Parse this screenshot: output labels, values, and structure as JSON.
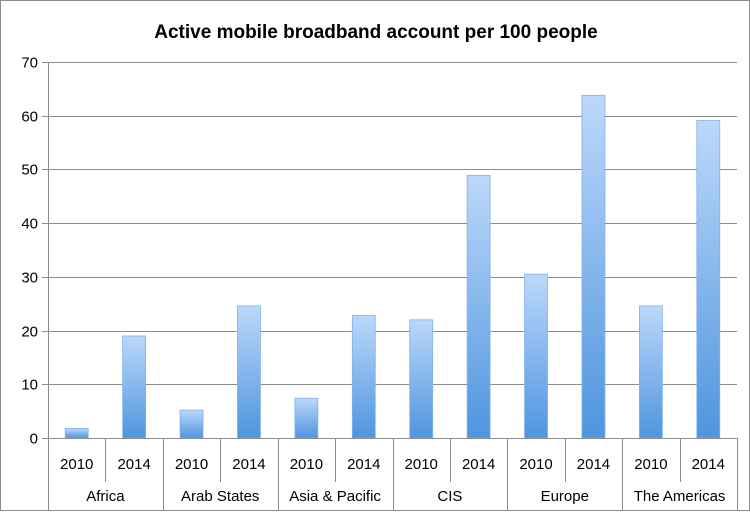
{
  "chart_data": {
    "type": "bar",
    "title": "Active mobile broadband account per 100 people",
    "xlabel": "",
    "ylabel": "",
    "ylim": [
      0,
      70
    ],
    "yticks": [
      0,
      10,
      20,
      30,
      40,
      50,
      60,
      70
    ],
    "grid": true,
    "legend": "none",
    "groups": [
      {
        "name": "Africa",
        "categories": [
          "2010",
          "2014"
        ],
        "values": [
          1.8,
          19.0
        ]
      },
      {
        "name": "Arab States",
        "categories": [
          "2010",
          "2014"
        ],
        "values": [
          5.2,
          24.6
        ]
      },
      {
        "name": "Asia & Pacific",
        "categories": [
          "2010",
          "2014"
        ],
        "values": [
          7.4,
          22.8
        ]
      },
      {
        "name": "CIS",
        "categories": [
          "2010",
          "2014"
        ],
        "values": [
          22.0,
          48.9
        ]
      },
      {
        "name": "Europe",
        "categories": [
          "2010",
          "2014"
        ],
        "values": [
          30.5,
          63.8
        ]
      },
      {
        "name": "The Americas",
        "categories": [
          "2010",
          "2014"
        ],
        "values": [
          24.6,
          59.1
        ]
      }
    ],
    "colors": {
      "bar_top": "#bcd8fb",
      "bar_bottom": "#4f95de",
      "bar_edge": "#7fb2ea",
      "grid": "#8c8c8c",
      "axis": "#8c8c8c"
    }
  }
}
